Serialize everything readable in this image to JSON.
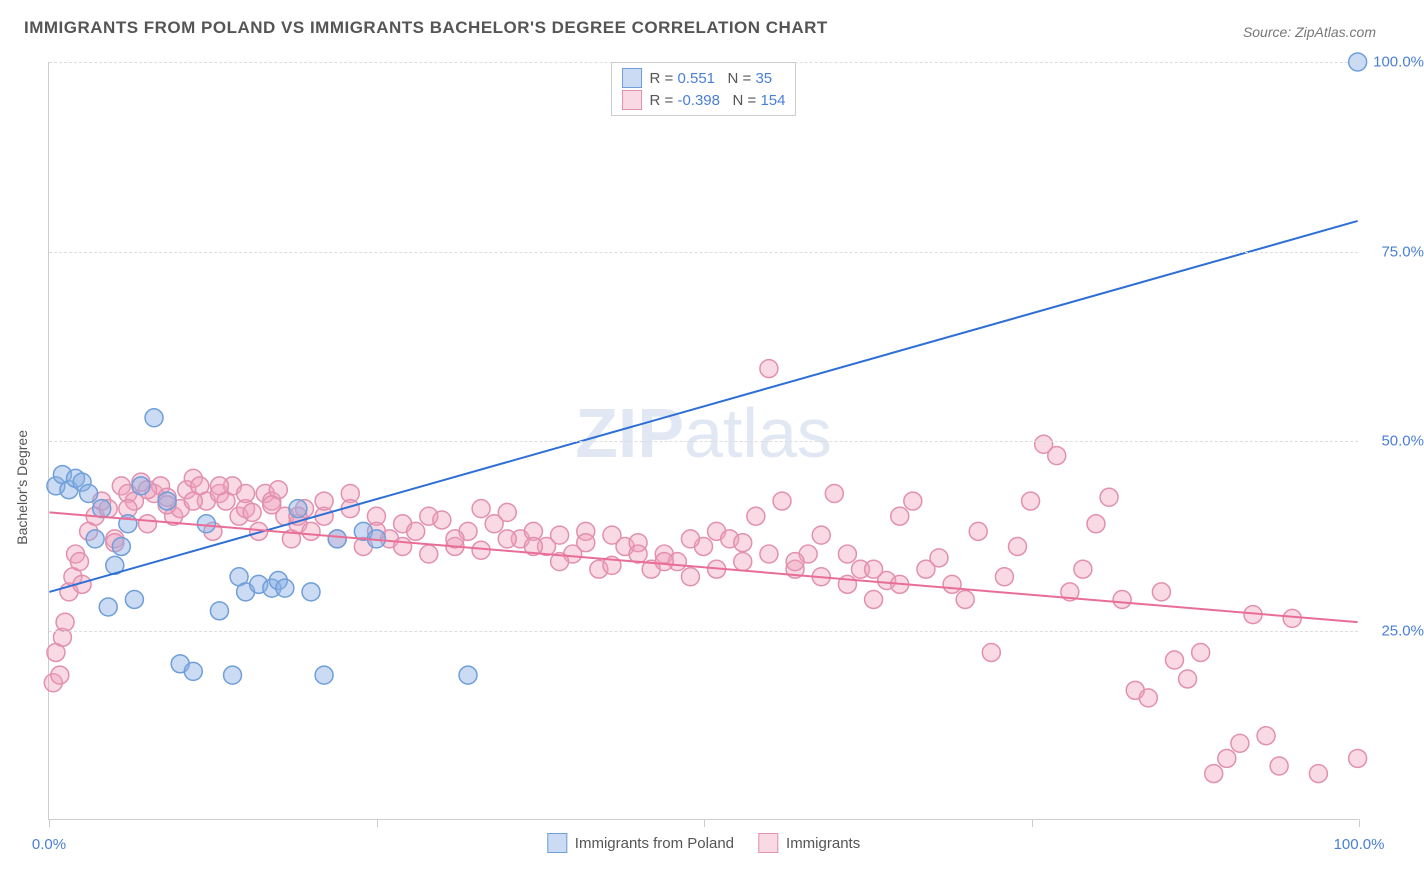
{
  "title": "IMMIGRANTS FROM POLAND VS IMMIGRANTS BACHELOR'S DEGREE CORRELATION CHART",
  "source": "Source: ZipAtlas.com",
  "y_axis_label": "Bachelor's Degree",
  "watermark": {
    "bold": "ZIP",
    "rest": "atlas"
  },
  "chart": {
    "type": "scatter",
    "background_color": "#ffffff",
    "grid_color": "#dddddd",
    "axis_color": "#cccccc",
    "label_color": "#4a7fd6",
    "xlim": [
      0,
      100
    ],
    "ylim": [
      0,
      100
    ],
    "x_ticks": [
      0,
      25,
      50,
      75,
      100
    ],
    "x_tick_labels": [
      "0.0%",
      "",
      "",
      "",
      "100.0%"
    ],
    "y_ticks": [
      25,
      50,
      75,
      100
    ],
    "y_tick_labels": [
      "25.0%",
      "50.0%",
      "75.0%",
      "100.0%"
    ],
    "marker_radius": 9,
    "marker_stroke_width": 1.5,
    "trend_line_width": 2,
    "series": [
      {
        "name": "Immigrants from Poland",
        "fill": "rgba(137,176,229,0.45)",
        "stroke": "#6f9fd8",
        "r_value": "0.551",
        "n_value": "35",
        "trend": {
          "x1": 0,
          "y1": 30,
          "x2": 100,
          "y2": 79,
          "color": "#2e6fd6"
        },
        "points": [
          [
            0.5,
            44
          ],
          [
            1,
            45.5
          ],
          [
            1.5,
            43.5
          ],
          [
            2,
            45
          ],
          [
            2.5,
            44.5
          ],
          [
            3,
            43
          ],
          [
            3.5,
            37
          ],
          [
            4,
            41
          ],
          [
            4.5,
            28
          ],
          [
            5,
            33.5
          ],
          [
            5.5,
            36
          ],
          [
            6,
            39
          ],
          [
            6.5,
            29
          ],
          [
            7,
            44
          ],
          [
            8,
            53
          ],
          [
            9,
            42
          ],
          [
            10,
            20.5
          ],
          [
            11,
            19.5
          ],
          [
            12,
            39
          ],
          [
            13,
            27.5
          ],
          [
            14,
            19
          ],
          [
            14.5,
            32
          ],
          [
            15,
            30
          ],
          [
            16,
            31
          ],
          [
            17,
            30.5
          ],
          [
            17.5,
            31.5
          ],
          [
            18,
            30.5
          ],
          [
            19,
            41
          ],
          [
            20,
            30
          ],
          [
            21,
            19
          ],
          [
            22,
            37
          ],
          [
            24,
            38
          ],
          [
            25,
            37
          ],
          [
            32,
            19
          ],
          [
            100,
            100
          ]
        ]
      },
      {
        "name": "Immigrants",
        "fill": "rgba(241,160,188,0.4)",
        "stroke": "#e290af",
        "r_value": "-0.398",
        "n_value": "154",
        "trend": {
          "x1": 0,
          "y1": 40.5,
          "x2": 100,
          "y2": 26,
          "color": "#e86e96"
        },
        "points": [
          [
            0.3,
            18
          ],
          [
            0.5,
            22
          ],
          [
            0.8,
            19
          ],
          [
            1,
            24
          ],
          [
            1.2,
            26
          ],
          [
            1.5,
            30
          ],
          [
            1.8,
            32
          ],
          [
            2,
            35
          ],
          [
            2.3,
            34
          ],
          [
            2.5,
            31
          ],
          [
            3,
            38
          ],
          [
            3.5,
            40
          ],
          [
            4,
            42
          ],
          [
            4.5,
            41
          ],
          [
            5,
            37
          ],
          [
            5.5,
            44
          ],
          [
            6,
            43
          ],
          [
            6.5,
            42
          ],
          [
            7,
            44.5
          ],
          [
            7.5,
            39
          ],
          [
            8,
            43
          ],
          [
            8.5,
            44
          ],
          [
            9,
            42.5
          ],
          [
            9.5,
            40
          ],
          [
            10,
            41
          ],
          [
            10.5,
            43.5
          ],
          [
            11,
            45
          ],
          [
            11.5,
            44
          ],
          [
            12,
            42
          ],
          [
            12.5,
            38
          ],
          [
            13,
            43
          ],
          [
            13.5,
            42
          ],
          [
            14,
            44
          ],
          [
            14.5,
            40
          ],
          [
            15,
            41
          ],
          [
            15.5,
            40.5
          ],
          [
            16,
            38
          ],
          [
            16.5,
            43
          ],
          [
            17,
            42
          ],
          [
            17.5,
            43.5
          ],
          [
            18,
            40
          ],
          [
            18.5,
            37
          ],
          [
            19,
            39
          ],
          [
            19.5,
            41
          ],
          [
            20,
            38
          ],
          [
            21,
            40
          ],
          [
            22,
            37
          ],
          [
            23,
            43
          ],
          [
            24,
            36
          ],
          [
            25,
            40
          ],
          [
            26,
            37
          ],
          [
            27,
            39
          ],
          [
            28,
            38
          ],
          [
            29,
            40
          ],
          [
            30,
            39.5
          ],
          [
            31,
            36
          ],
          [
            32,
            38
          ],
          [
            33,
            41
          ],
          [
            34,
            39
          ],
          [
            35,
            40.5
          ],
          [
            36,
            37
          ],
          [
            37,
            38
          ],
          [
            38,
            36
          ],
          [
            39,
            37.5
          ],
          [
            40,
            35
          ],
          [
            41,
            38
          ],
          [
            42,
            33
          ],
          [
            43,
            37.5
          ],
          [
            44,
            36
          ],
          [
            45,
            36.5
          ],
          [
            46,
            33
          ],
          [
            47,
            35
          ],
          [
            48,
            34
          ],
          [
            49,
            32
          ],
          [
            50,
            36
          ],
          [
            51,
            38
          ],
          [
            52,
            37
          ],
          [
            53,
            34
          ],
          [
            54,
            40
          ],
          [
            55,
            59.5
          ],
          [
            56,
            42
          ],
          [
            57,
            33
          ],
          [
            58,
            35
          ],
          [
            59,
            37.5
          ],
          [
            60,
            43
          ],
          [
            61,
            31
          ],
          [
            62,
            33
          ],
          [
            63,
            29
          ],
          [
            64,
            31.5
          ],
          [
            65,
            40
          ],
          [
            66,
            42
          ],
          [
            67,
            33
          ],
          [
            68,
            34.5
          ],
          [
            69,
            31
          ],
          [
            70,
            29
          ],
          [
            71,
            38
          ],
          [
            72,
            22
          ],
          [
            73,
            32
          ],
          [
            74,
            36
          ],
          [
            75,
            42
          ],
          [
            76,
            49.5
          ],
          [
            77,
            48
          ],
          [
            78,
            30
          ],
          [
            79,
            33
          ],
          [
            80,
            39
          ],
          [
            81,
            42.5
          ],
          [
            82,
            29
          ],
          [
            83,
            17
          ],
          [
            84,
            16
          ],
          [
            85,
            30
          ],
          [
            86,
            21
          ],
          [
            87,
            18.5
          ],
          [
            88,
            22
          ],
          [
            89,
            6
          ],
          [
            90,
            8
          ],
          [
            91,
            10
          ],
          [
            92,
            27
          ],
          [
            93,
            11
          ],
          [
            94,
            7
          ],
          [
            95,
            26.5
          ],
          [
            97,
            6
          ],
          [
            100,
            8
          ],
          [
            5,
            36.5
          ],
          [
            6,
            41
          ],
          [
            7.5,
            43.5
          ],
          [
            9,
            41.5
          ],
          [
            11,
            42
          ],
          [
            13,
            44
          ],
          [
            15,
            43
          ],
          [
            17,
            41.5
          ],
          [
            19,
            40
          ],
          [
            21,
            42
          ],
          [
            23,
            41
          ],
          [
            25,
            38
          ],
          [
            27,
            36
          ],
          [
            29,
            35
          ],
          [
            31,
            37
          ],
          [
            33,
            35.5
          ],
          [
            35,
            37
          ],
          [
            37,
            36
          ],
          [
            39,
            34
          ],
          [
            41,
            36.5
          ],
          [
            43,
            33.5
          ],
          [
            45,
            35
          ],
          [
            47,
            34
          ],
          [
            49,
            37
          ],
          [
            51,
            33
          ],
          [
            53,
            36.5
          ],
          [
            55,
            35
          ],
          [
            57,
            34
          ],
          [
            59,
            32
          ],
          [
            61,
            35
          ],
          [
            63,
            33
          ],
          [
            65,
            31
          ]
        ]
      }
    ]
  },
  "legend_bottom": [
    {
      "label": "Immigrants from Poland",
      "fill": "rgba(137,176,229,0.45)",
      "stroke": "#6f9fd8"
    },
    {
      "label": "Immigrants",
      "fill": "rgba(241,160,188,0.4)",
      "stroke": "#e290af"
    }
  ]
}
